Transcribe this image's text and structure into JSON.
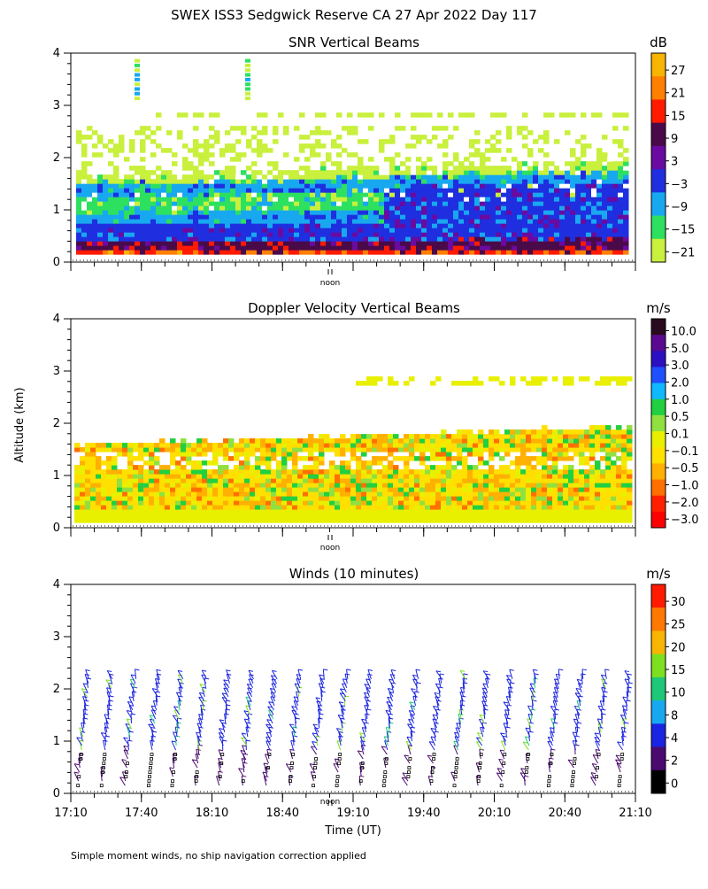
{
  "main_title": "SWEX ISS3 Sedgwick Reserve CA  27 Apr 2022 Day 117",
  "y_axis_label": "Altitude (km)",
  "x_axis_label": "Time (UT)",
  "noon_label": "noon",
  "footnote": "Simple moment winds, no ship navigation correction applied",
  "chart_data": [
    {
      "id": "snr",
      "type": "heatmap",
      "title": "SNR Vertical Beams",
      "unit": "dB",
      "ylim": [
        0,
        4
      ],
      "y_ticks": [
        "0",
        "1",
        "2",
        "3",
        "4"
      ],
      "x_range_ut": [
        "17:10",
        "21:10"
      ],
      "colorbar": {
        "labels": [
          "27",
          "21",
          "15",
          "9",
          "3",
          "−3",
          "−9",
          "−15",
          "−21"
        ],
        "colors": [
          "#f7b400",
          "#ff7f00",
          "#ff1a00",
          "#4a0a4a",
          "#6a0aa0",
          "#1f2fe0",
          "#18a8f0",
          "#2de060",
          "#c8f03c",
          "#ffffff"
        ]
      }
    },
    {
      "id": "doppler",
      "type": "heatmap",
      "title": "Doppler Velocity Vertical Beams",
      "unit": "m/s",
      "ylim": [
        0,
        4
      ],
      "y_ticks": [
        "0",
        "1",
        "2",
        "3",
        "4"
      ],
      "x_range_ut": [
        "17:10",
        "21:10"
      ],
      "colorbar": {
        "labels": [
          "10.0",
          "5.0",
          "3.0",
          "2.0",
          "1.0",
          "0.5",
          "0.1",
          "−0.1",
          "−0.5",
          "−1.0",
          "−2.0",
          "−3.0"
        ],
        "colors": [
          "#2a0a1e",
          "#5a0a90",
          "#2a10c0",
          "#1f4fff",
          "#10b8ff",
          "#20d040",
          "#90e040",
          "#e8f000",
          "#ffe000",
          "#ffb000",
          "#ff7000",
          "#ff2000",
          "#ff0000"
        ]
      }
    },
    {
      "id": "winds",
      "type": "scatter",
      "title": "Winds (10 minutes)",
      "unit": "m/s",
      "ylim": [
        0,
        4
      ],
      "y_ticks": [
        "0",
        "1",
        "2",
        "3",
        "4"
      ],
      "x_ticks": [
        "17:10",
        "17:40",
        "18:10",
        "18:40",
        "19:10",
        "19:40",
        "20:10",
        "20:40",
        "21:10"
      ],
      "colorbar": {
        "labels": [
          "30",
          "25",
          "20",
          "15",
          "10",
          "8",
          "4",
          "2",
          "0"
        ],
        "colors": [
          "#ff1a00",
          "#ff7800",
          "#f7b400",
          "#7ce020",
          "#1ec878",
          "#18a8f0",
          "#1a24e0",
          "#4a0a70",
          "#000000"
        ]
      },
      "profiles_ut": [
        "17:15",
        "17:25",
        "17:35",
        "17:45",
        "17:55",
        "18:05",
        "18:15",
        "18:25",
        "18:35",
        "18:45",
        "18:55",
        "19:05",
        "19:15",
        "19:25",
        "19:35",
        "19:45",
        "19:55",
        "20:05",
        "20:15",
        "20:25",
        "20:35",
        "20:45",
        "20:55",
        "21:05"
      ]
    }
  ]
}
